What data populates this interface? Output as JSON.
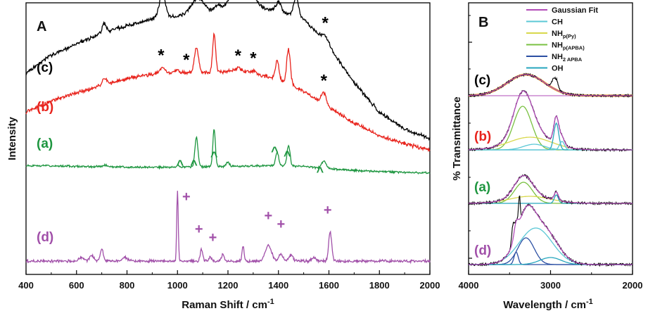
{
  "chart_data": [
    {
      "type": "line",
      "panel": "A",
      "xlabel": "Raman Shift / cm",
      "xlabel_sup": "-1",
      "ylabel": "Intensity",
      "xlim": [
        400,
        2000
      ],
      "xticks": [
        400,
        600,
        800,
        1000,
        1200,
        1400,
        1600,
        1800,
        2000
      ],
      "series": [
        {
          "label": "(c)",
          "color": "#000000",
          "baseline": [
            [
              400,
              0.58
            ],
            [
              500,
              0.7
            ],
            [
              600,
              0.77
            ],
            [
              700,
              0.84
            ],
            [
              800,
              0.89
            ],
            [
              900,
              0.93
            ],
            [
              1000,
              0.95
            ],
            [
              1100,
              0.97
            ],
            [
              1200,
              0.99
            ],
            [
              1300,
              1.0
            ],
            [
              1400,
              0.99
            ],
            [
              1500,
              0.93
            ],
            [
              1600,
              0.76
            ],
            [
              1700,
              0.52
            ],
            [
              1800,
              0.33
            ],
            [
              1900,
              0.22
            ],
            [
              2000,
              0.16
            ]
          ],
          "peaks": [
            [
              710,
              0.06,
              8
            ],
            [
              940,
              0.16,
              12
            ],
            [
              1080,
              0.1,
              25
            ],
            [
              1160,
              0.04,
              12
            ],
            [
              1240,
              0.15,
              30
            ],
            [
              1300,
              0.06,
              20
            ],
            [
              1400,
              0.05,
              10
            ],
            [
              1470,
              0.13,
              9
            ],
            [
              1585,
              0.04,
              12
            ]
          ]
        },
        {
          "label": "(b)",
          "color": "#e8231c",
          "baseline": [
            [
              400,
              0.35
            ],
            [
              500,
              0.42
            ],
            [
              600,
              0.47
            ],
            [
              700,
              0.52
            ],
            [
              800,
              0.56
            ],
            [
              900,
              0.59
            ],
            [
              1000,
              0.6
            ],
            [
              1100,
              0.6
            ],
            [
              1200,
              0.6
            ],
            [
              1300,
              0.59
            ],
            [
              1400,
              0.56
            ],
            [
              1500,
              0.48
            ],
            [
              1600,
              0.38
            ],
            [
              1700,
              0.28
            ],
            [
              1800,
              0.2
            ],
            [
              1900,
              0.15
            ],
            [
              2000,
              0.11
            ]
          ],
          "peaks": [
            [
              710,
              0.04,
              8
            ],
            [
              940,
              0.04,
              10
            ],
            [
              1000,
              0.02,
              6
            ],
            [
              1075,
              0.16,
              8
            ],
            [
              1145,
              0.24,
              6
            ],
            [
              1240,
              0.03,
              20
            ],
            [
              1300,
              0.02,
              15
            ],
            [
              1395,
              0.11,
              7
            ],
            [
              1440,
              0.22,
              7
            ],
            [
              1580,
              0.07,
              10
            ]
          ]
        },
        {
          "label": "(a)",
          "color": "#1e9640",
          "baseline": [
            [
              400,
              0.09
            ],
            [
              600,
              0.08
            ],
            [
              800,
              0.07
            ],
            [
              1000,
              0.07
            ],
            [
              1200,
              0.08
            ],
            [
              1400,
              0.09
            ],
            [
              1500,
              0.08
            ],
            [
              1600,
              0.05
            ],
            [
              1700,
              0.03
            ],
            [
              1800,
              0.02
            ],
            [
              1900,
              0.01
            ],
            [
              2000,
              0.0
            ]
          ],
          "peaks": [
            [
              715,
              0.02,
              7
            ],
            [
              1000,
              0.02,
              5
            ],
            [
              1075,
              0.35,
              6
            ],
            [
              1145,
              0.45,
              5
            ],
            [
              1200,
              0.05,
              6
            ],
            [
              1395,
              0.16,
              6
            ],
            [
              1440,
              0.24,
              6
            ],
            [
              1580,
              0.09,
              9
            ]
          ]
        },
        {
          "label": "(d)",
          "color": "#a150a9",
          "baseline": [
            [
              400,
              0.0
            ],
            [
              2000,
              0.0
            ]
          ],
          "peaks": [
            [
              620,
              0.03,
              10
            ],
            [
              660,
              0.05,
              8
            ],
            [
              700,
              0.1,
              6
            ],
            [
              790,
              0.03,
              10
            ],
            [
              1000,
              0.6,
              3
            ],
            [
              1095,
              0.1,
              5
            ],
            [
              1130,
              0.04,
              4
            ],
            [
              1180,
              0.06,
              5
            ],
            [
              1260,
              0.13,
              4
            ],
            [
              1360,
              0.14,
              12
            ],
            [
              1410,
              0.06,
              8
            ],
            [
              1450,
              0.05,
              8
            ],
            [
              1540,
              0.03,
              8
            ],
            [
              1605,
              0.25,
              6
            ]
          ]
        }
      ],
      "markers": [
        {
          "symbol": "*",
          "x": 940,
          "trace": "(c)"
        },
        {
          "symbol": "*",
          "x": 1080,
          "trace": "(c)"
        },
        {
          "symbol": "*",
          "x": 1235,
          "trace": "(c)"
        },
        {
          "symbol": "*",
          "x": 1300,
          "trace": "(c)"
        },
        {
          "symbol": "*",
          "x": 1585,
          "trace": "(c)"
        },
        {
          "symbol": "*",
          "x": 935,
          "trace": "(b)"
        },
        {
          "symbol": "*",
          "x": 1035,
          "trace": "(b)"
        },
        {
          "symbol": "*",
          "x": 1240,
          "trace": "(b)"
        },
        {
          "symbol": "*",
          "x": 1300,
          "trace": "(b)"
        },
        {
          "symbol": "*",
          "x": 1580,
          "trace": "(b)"
        },
        {
          "symbol": "^",
          "x": 1010,
          "trace": "(a)"
        },
        {
          "symbol": "^",
          "x": 1065,
          "trace": "(a)"
        },
        {
          "symbol": "^",
          "x": 1145,
          "trace": "(a)"
        },
        {
          "symbol": "^",
          "x": 1385,
          "trace": "(a)"
        },
        {
          "symbol": "^",
          "x": 1435,
          "trace": "(a)"
        },
        {
          "symbol": "^",
          "x": 1565,
          "trace": "(a)"
        },
        {
          "symbol": "+",
          "x": 1035,
          "trace": "(d)"
        },
        {
          "symbol": "+",
          "x": 1085,
          "trace": "(d)"
        },
        {
          "symbol": "+",
          "x": 1140,
          "trace": "(d)"
        },
        {
          "symbol": "+",
          "x": 1360,
          "trace": "(d)"
        },
        {
          "symbol": "+",
          "x": 1410,
          "trace": "(d)"
        },
        {
          "symbol": "+",
          "x": 1595,
          "trace": "(d)"
        }
      ]
    },
    {
      "type": "line",
      "panel": "B",
      "xlabel": "Wavelength / cm",
      "xlabel_sup": "-1",
      "ylabel": "% Transmittance",
      "xlim": [
        4000,
        2000
      ],
      "xticks": [
        4000,
        3000,
        2000
      ],
      "legend": [
        {
          "label": "Gaussian Fit",
          "color": "#b24bb8"
        },
        {
          "label": "CH",
          "color": "#5bc8d6"
        },
        {
          "label": "NH",
          "sub": "p(Py)",
          "color": "#d8d84c"
        },
        {
          "label": "NH",
          "sub": "p(APBA)",
          "color": "#7ac142"
        },
        {
          "label": "NH",
          "sub": "2 APBA",
          "color": "#2b4fa3"
        },
        {
          "label": "OH",
          "color": "#27a6bd"
        }
      ],
      "panels": [
        {
          "label": "(c)",
          "label_color": "#000000"
        },
        {
          "label": "(b)",
          "label_color": "#e8231c"
        },
        {
          "label": "(a)",
          "label_color": "#1e9640"
        },
        {
          "label": "(d)",
          "label_color": "#a150a9"
        }
      ]
    }
  ]
}
